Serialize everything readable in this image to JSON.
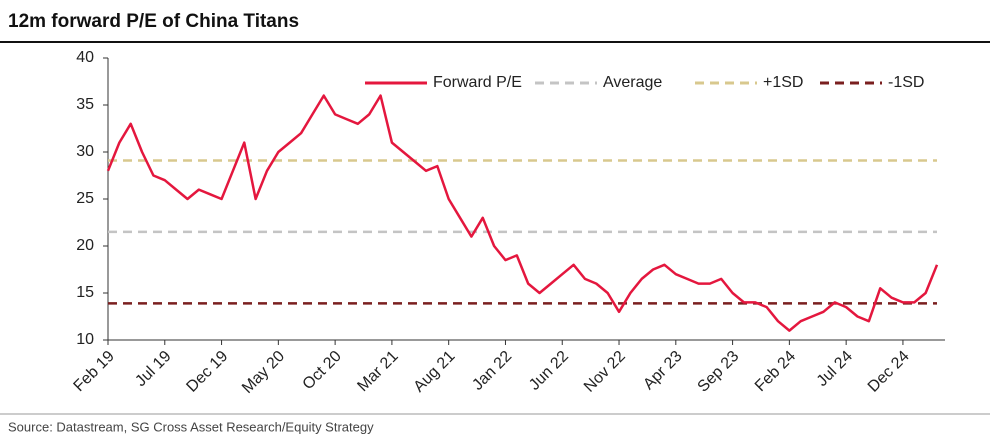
{
  "chart_data": {
    "type": "line",
    "title": "12m forward P/E of China Titans",
    "source": "Source: Datastream, SG Cross Asset Research/Equity Strategy",
    "categories": [
      "Feb 19",
      null,
      null,
      null,
      null,
      "Jul 19",
      null,
      null,
      null,
      null,
      "Dec 19",
      null,
      null,
      null,
      null,
      "May 20",
      null,
      null,
      null,
      null,
      "Oct 20",
      null,
      null,
      null,
      null,
      "Mar 21",
      null,
      null,
      null,
      null,
      "Aug 21",
      null,
      null,
      null,
      null,
      "Jan 22",
      null,
      null,
      null,
      null,
      "Jun 22",
      null,
      null,
      null,
      null,
      "Nov 22",
      null,
      null,
      null,
      null,
      "Apr 23",
      null,
      null,
      null,
      null,
      "Sep 23",
      null,
      null,
      null,
      null,
      "Feb 24",
      null,
      null,
      null,
      null,
      "Jul 24",
      null,
      null,
      null,
      null,
      "Dec 24",
      null,
      null,
      null
    ],
    "series": [
      {
        "name": "Forward P/E",
        "color": "#e4173e",
        "values": [
          28,
          31,
          33,
          30,
          27.5,
          27,
          26,
          25,
          26,
          25.5,
          25,
          28,
          31,
          25,
          28,
          30,
          31,
          32,
          34,
          36,
          34,
          33.5,
          33,
          34,
          36,
          31,
          30,
          29,
          28,
          28.5,
          25,
          23,
          21,
          23,
          20,
          18.5,
          19,
          16,
          15,
          16,
          17,
          18,
          16.5,
          16,
          15,
          13,
          15,
          16.5,
          17.5,
          18,
          17,
          16.5,
          16,
          16,
          16.5,
          15,
          14,
          14,
          13.5,
          12,
          11,
          12,
          12.5,
          13,
          14,
          13.5,
          12.5,
          12,
          15.5,
          14.5,
          14,
          14,
          15,
          18
        ]
      }
    ],
    "reference_lines": [
      {
        "name": "Average",
        "color": "#c4c4c4",
        "value": 21.5
      },
      {
        "name": "+1SD",
        "color": "#d8c88e",
        "value": 29.1
      },
      {
        "name": "-1SD",
        "color": "#7a1f1f",
        "value": 13.9
      }
    ],
    "ylim": [
      10,
      40
    ],
    "yticks": [
      10,
      15,
      20,
      25,
      30,
      35,
      40
    ]
  }
}
